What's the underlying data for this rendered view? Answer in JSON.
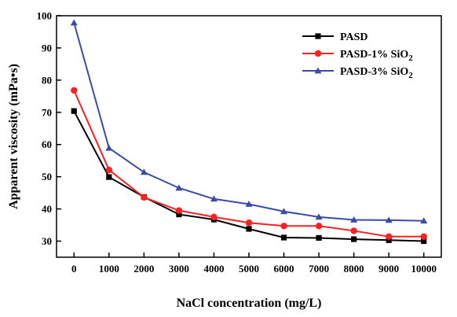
{
  "chart_data": {
    "type": "line",
    "xlabel": "NaCl concentration (mg/L)",
    "ylabel": "Apparent viscosity (mPa•s)",
    "x": [
      0,
      1000,
      2000,
      3000,
      4000,
      5000,
      6000,
      7000,
      8000,
      9000,
      10000
    ],
    "xlim": [
      -500,
      10500
    ],
    "ylim": [
      25,
      100
    ],
    "yticks": [
      30,
      40,
      50,
      60,
      70,
      80,
      90,
      100
    ],
    "grid": false,
    "legend_position": "top-right",
    "series": [
      {
        "name": "PASD",
        "name_main": "PASD",
        "name_sub": "",
        "color": "#000000",
        "marker": "square",
        "values": [
          70.4,
          49.9,
          43.7,
          38.3,
          36.7,
          33.8,
          31.1,
          31.0,
          30.6,
          30.3,
          30.0
        ]
      },
      {
        "name": "PASD-1% SiO2",
        "name_main": "PASD-1% SiO",
        "name_sub": "2",
        "color": "#ff2020",
        "marker": "circle",
        "values": [
          76.8,
          52.1,
          43.6,
          39.5,
          37.5,
          35.7,
          34.7,
          34.7,
          33.2,
          31.4,
          31.4
        ]
      },
      {
        "name": "PASD-3% SiO2",
        "name_main": "PASD-3% SiO",
        "name_sub": "2",
        "color": "#3a4ba8",
        "marker": "triangle",
        "values": [
          97.8,
          58.9,
          51.4,
          46.5,
          43.1,
          41.5,
          39.2,
          37.5,
          36.6,
          36.5,
          36.3
        ]
      }
    ]
  }
}
